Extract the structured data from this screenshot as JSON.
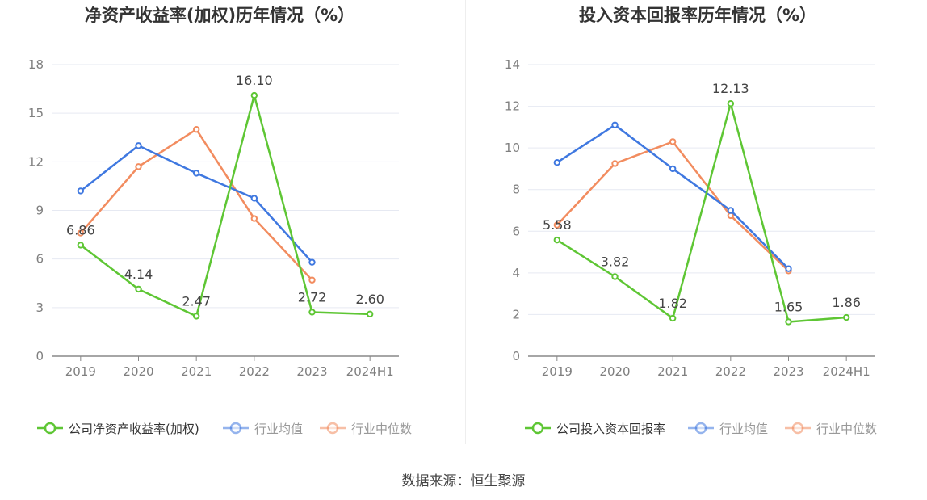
{
  "source": "数据来源：恒生聚源",
  "colors": {
    "company": "#5ec634",
    "avg": "#3f78e0",
    "median": "#f28c5f",
    "grid": "#e6e9f2",
    "axis": "#888888",
    "tick": "#7f7f7f",
    "title": "#333333"
  },
  "chart_data": [
    {
      "type": "line",
      "title": "净资产收益率(加权)历年情况（%）",
      "categories": [
        "2019",
        "2020",
        "2021",
        "2022",
        "2023",
        "2024H1"
      ],
      "ylim": [
        0,
        18
      ],
      "yticks": [
        0,
        3,
        6,
        9,
        12,
        15,
        18
      ],
      "series": [
        {
          "name": "公司净资产收益率(加权)",
          "key": "company",
          "values": [
            6.86,
            4.14,
            2.47,
            16.1,
            2.72,
            2.6
          ],
          "labels": [
            "6.86",
            "4.14",
            "2.47",
            "16.10",
            "2.72",
            "2.60"
          ]
        },
        {
          "name": "行业均值",
          "key": "avg",
          "values": [
            10.2,
            13.0,
            11.3,
            9.75,
            5.8,
            null
          ]
        },
        {
          "name": "行业中位数",
          "key": "median",
          "values": [
            7.6,
            11.7,
            14.0,
            8.5,
            4.7,
            null
          ]
        }
      ]
    },
    {
      "type": "line",
      "title": "投入资本回报率历年情况（%）",
      "categories": [
        "2019",
        "2020",
        "2021",
        "2022",
        "2023",
        "2024H1"
      ],
      "ylim": [
        0,
        14
      ],
      "yticks": [
        0,
        2,
        4,
        6,
        8,
        10,
        12,
        14
      ],
      "series": [
        {
          "name": "公司投入资本回报率",
          "key": "company",
          "values": [
            5.58,
            3.82,
            1.82,
            12.13,
            1.65,
            1.86
          ],
          "labels": [
            "5.58",
            "3.82",
            "1.82",
            "12.13",
            "1.65",
            "1.86"
          ]
        },
        {
          "name": "行业均值",
          "key": "avg",
          "values": [
            9.3,
            11.1,
            9.0,
            7.0,
            4.2,
            null
          ]
        },
        {
          "name": "行业中位数",
          "key": "median",
          "values": [
            6.3,
            9.25,
            10.3,
            6.75,
            4.1,
            null
          ]
        }
      ]
    }
  ]
}
